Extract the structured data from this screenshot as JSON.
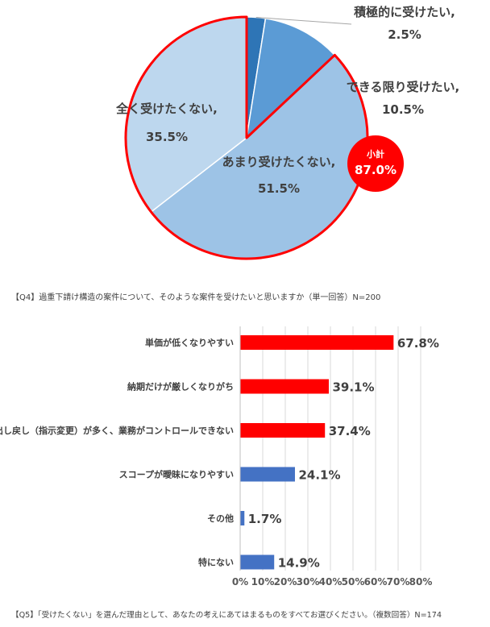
{
  "chart_data": [
    {
      "type": "pie",
      "slices": [
        {
          "label": "積極的に受けたい,",
          "value": 2.5,
          "value_label": "2.5%",
          "color": "#2e75b6"
        },
        {
          "label": "できる限り受けたい,",
          "value": 10.5,
          "value_label": "10.5%",
          "color": "#5b9bd5"
        },
        {
          "label": "あまり受けたくない,",
          "value": 51.5,
          "value_label": "51.5%",
          "color": "#9dc3e6"
        },
        {
          "label": "全く受けたくない,",
          "value": 35.5,
          "value_label": "35.5%",
          "color": "#bdd7ee"
        }
      ],
      "subtotal": {
        "label": "小計",
        "value_label": "87.0%",
        "color": "#ff0000"
      },
      "caption": "【Q4】過重下請け構造の案件について、そのような案件を受けたいと思いますか（単一回答）N=200"
    },
    {
      "type": "bar",
      "orientation": "horizontal",
      "categories": [
        "単価が低くなりやすい",
        "納期だけが厳しくなりがち",
        "出し戻し（指示変更）が多く、業務がコントロールできない",
        "スコープが曖昧になりやすい",
        "その他",
        "特にない"
      ],
      "values": [
        67.8,
        39.1,
        37.4,
        24.1,
        1.7,
        14.9
      ],
      "value_labels": [
        "67.8%",
        "39.1%",
        "37.4%",
        "24.1%",
        "1.7%",
        "14.9%"
      ],
      "colors": [
        "#ff0000",
        "#ff0000",
        "#ff0000",
        "#4472c4",
        "#4472c4",
        "#4472c4"
      ],
      "xlim": [
        0,
        80
      ],
      "xticks": [
        "0%",
        "10%",
        "20%",
        "30%",
        "40%",
        "50%",
        "60%",
        "70%",
        "80%"
      ],
      "caption": "【Q5】「受けたくない」を選んだ理由として、あなたの考えにあてはまるものをすべてお選びください。（複数回答）N=174"
    }
  ]
}
